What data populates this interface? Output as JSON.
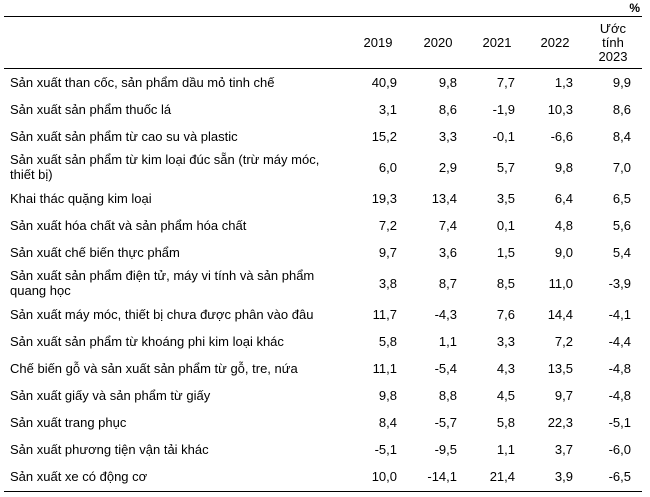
{
  "unit": "%",
  "table": {
    "header": [
      "2019",
      "2020",
      "2021",
      "2022",
      "Ước tính 2023"
    ],
    "rows": [
      [
        "Sản xuất than cốc, sản phẩm dầu mỏ tinh chế",
        "40,9",
        "9,8",
        "7,7",
        "1,3",
        "9,9"
      ],
      [
        "Sản xuất sản phẩm thuốc lá",
        "3,1",
        "8,6",
        "-1,9",
        "10,3",
        "8,6"
      ],
      [
        "Sản xuất sản phẩm từ cao su và plastic",
        "15,2",
        "3,3",
        "-0,1",
        "-6,6",
        "8,4"
      ],
      [
        "Sản xuất sản phẩm từ kim loại đúc sẵn (trừ máy móc, thiết bị)",
        "6,0",
        "2,9",
        "5,7",
        "9,8",
        "7,0"
      ],
      [
        "Khai thác quặng kim loại",
        "19,3",
        "13,4",
        "3,5",
        "6,4",
        "6,5"
      ],
      [
        "Sản xuất hóa chất và sản phẩm hóa chất",
        "7,2",
        "7,4",
        "0,1",
        "4,8",
        "5,6"
      ],
      [
        "Sản xuất chế biến thực phẩm",
        "9,7",
        "3,6",
        "1,5",
        "9,0",
        "5,4"
      ],
      [
        "Sản xuất sản phẩm điện tử, máy vi tính và sản phẩm quang học",
        "3,8",
        "8,7",
        "8,5",
        "11,0",
        "-3,9"
      ],
      [
        "Sản xuất máy móc, thiết bị chưa được phân vào đâu",
        "11,7",
        "-4,3",
        "7,6",
        "14,4",
        "-4,1"
      ],
      [
        "Sản xuất sản phẩm từ khoáng phi kim loại khác",
        "5,8",
        "1,1",
        "3,3",
        "7,2",
        "-4,4"
      ],
      [
        "Chế biến gỗ và sản xuất sản phẩm từ gỗ, tre, nứa",
        "11,1",
        "-5,4",
        "4,3",
        "13,5",
        "-4,8"
      ],
      [
        "Sản xuất giấy và sản phẩm từ giấy",
        "9,8",
        "8,8",
        "4,5",
        "9,7",
        "-4,8"
      ],
      [
        "Sản xuất trang phục",
        "8,4",
        "-5,7",
        "5,8",
        "22,3",
        "-5,1"
      ],
      [
        "Sản xuất phương tiện vận tải khác",
        "-5,1",
        "-9,5",
        "1,1",
        "3,7",
        "-6,0"
      ],
      [
        "Sản xuất xe có động cơ",
        "10,0",
        "-14,1",
        "21,4",
        "3,9",
        "-6,5"
      ]
    ]
  }
}
